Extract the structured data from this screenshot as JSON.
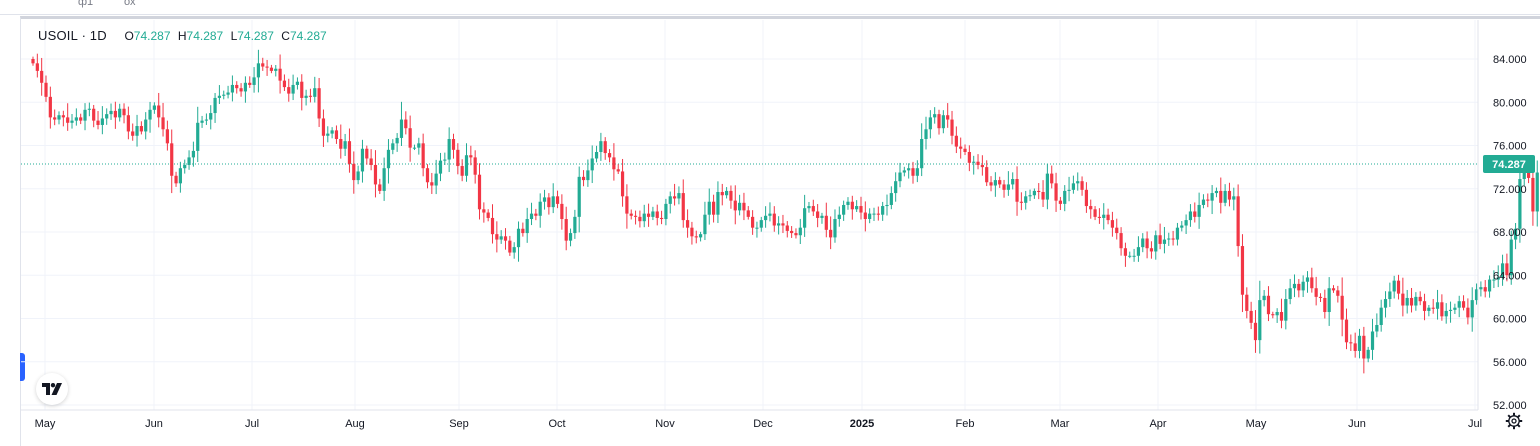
{
  "symbol": {
    "name": "USOIL",
    "sep": "·",
    "interval": "1D"
  },
  "legend": {
    "o_label": "O",
    "o": "74.287",
    "h_label": "H",
    "h": "74.287",
    "l_label": "L",
    "l": "74.287",
    "c_label": "C",
    "c": "74.287"
  },
  "topbar": {
    "left_stub1": "ф1",
    "left_stub2": "ох"
  },
  "colors": {
    "up": "#22ab94",
    "down": "#f23645",
    "grid": "#f0f3fa",
    "axis_text": "#131722",
    "price_line": "#22ab94"
  },
  "icons": {
    "logo": "tradingview-logo-icon",
    "settings": "gear-icon"
  },
  "chart_data": {
    "type": "candlestick",
    "title": "USOIL · 1D",
    "ylim": [
      51.5,
      86.0
    ],
    "y_ticks": [
      52,
      56,
      60,
      64,
      68,
      72,
      76,
      80,
      84
    ],
    "y_tick_labels": [
      "52.000",
      "56.000",
      "60.000",
      "64.000",
      "68.000",
      "72.000",
      "76.000",
      "80.000",
      "84.000"
    ],
    "x_labels": [
      "May",
      "Jun",
      "Jul",
      "Aug",
      "Sep",
      "Oct",
      "Nov",
      "Dec",
      "2025",
      "Feb",
      "Mar",
      "Apr",
      "May",
      "Jun",
      "Jul"
    ],
    "x_label_bold": "2025",
    "last_price": 74.287,
    "last_price_label": "74.287",
    "closes": [
      83.6,
      82.9,
      81.8,
      80.5,
      78.6,
      78.4,
      78.8,
      78.6,
      78.1,
      78.3,
      78.6,
      78.3,
      79.3,
      79.4,
      78.3,
      77.9,
      78.5,
      78.9,
      79.2,
      78.6,
      79.4,
      78.8,
      77.3,
      76.9,
      77.8,
      77.3,
      78.4,
      79.3,
      79.7,
      78.6,
      77.5,
      76.2,
      73.2,
      72.5,
      73.9,
      74.2,
      74.9,
      75.5,
      78.1,
      78.3,
      78.4,
      79.0,
      80.4,
      80.6,
      80.7,
      80.9,
      81.6,
      81.3,
      81.0,
      81.8,
      81.6,
      82.3,
      83.6,
      83.3,
      83.2,
      82.9,
      83.1,
      82.0,
      81.4,
      80.8,
      81.6,
      81.9,
      80.4,
      80.6,
      80.5,
      81.3,
      78.5,
      76.9,
      77.1,
      77.4,
      76.6,
      75.7,
      76.4,
      74.3,
      72.8,
      73.6,
      75.7,
      74.8,
      74.2,
      72.4,
      71.8,
      73.9,
      75.6,
      76.2,
      76.7,
      78.4,
      77.6,
      75.8,
      75.8,
      76.2,
      73.9,
      72.6,
      72.3,
      73.4,
      74.6,
      74.7,
      76.6,
      75.6,
      74.1,
      73.2,
      75.1,
      74.9,
      73.3,
      70.1,
      69.8,
      69.3,
      67.8,
      67.3,
      67.6,
      67.2,
      66.1,
      66.6,
      68.3,
      67.9,
      69.2,
      69.7,
      69.5,
      70.8,
      71.2,
      70.3,
      71.3,
      70.6,
      69.2,
      67.2,
      67.9,
      69.4,
      73.1,
      72.8,
      73.7,
      74.8,
      75.4,
      76.4,
      75.3,
      74.9,
      73.8,
      73.6,
      71.3,
      69.7,
      69.5,
      69.4,
      69.0,
      69.7,
      69.4,
      69.9,
      69.3,
      69.2,
      70.6,
      71.3,
      71.1,
      71.6,
      69.1,
      68.4,
      67.6,
      67.5,
      67.8,
      69.6,
      70.8,
      69.6,
      71.7,
      71.4,
      71.8,
      70.9,
      70.0,
      70.7,
      70.0,
      69.4,
      68.4,
      68.4,
      69.1,
      69.5,
      69.7,
      68.6,
      68.8,
      68.6,
      68.1,
      67.9,
      67.7,
      68.4,
      70.2,
      70.4,
      69.9,
      69.3,
      69.5,
      68.2,
      67.5,
      69.2,
      69.6,
      70.5,
      70.8,
      70.1,
      70.4,
      69.8,
      69.2,
      69.7,
      69.7,
      69.6,
      70.4,
      70.5,
      71.6,
      72.7,
      73.5,
      73.7,
      73.9,
      73.2,
      73.9,
      76.6,
      77.5,
      78.6,
      78.9,
      77.6,
      78.8,
      78.4,
      76.9,
      75.9,
      75.7,
      75.4,
      74.4,
      74.5,
      74.2,
      74.0,
      72.6,
      72.3,
      72.8,
      72.4,
      71.9,
      72.4,
      72.9,
      70.8,
      70.7,
      71.3,
      71.4,
      71.8,
      71.7,
      71.0,
      73.4,
      72.5,
      70.9,
      70.6,
      71.8,
      71.9,
      72.5,
      72.7,
      71.9,
      70.4,
      70.1,
      69.4,
      69.3,
      69.6,
      69.1,
      68.4,
      67.9,
      66.5,
      65.8,
      65.8,
      65.8,
      66.6,
      67.4,
      66.5,
      66.2,
      67.7,
      66.9,
      67.3,
      67.4,
      67.3,
      68.4,
      68.6,
      69.1,
      69.9,
      69.4,
      70.5,
      71.0,
      70.9,
      71.6,
      71.8,
      70.7,
      71.8,
      71.0,
      71.3,
      66.7,
      62.2,
      60.7,
      59.6,
      58.0,
      61.7,
      62.1,
      60.4,
      60.3,
      60.6,
      59.8,
      61.8,
      62.8,
      63.2,
      62.6,
      63.4,
      63.8,
      62.8,
      62.0,
      61.9,
      60.6,
      62.8,
      62.6,
      62.1,
      59.9,
      57.8,
      57.7,
      57.0,
      58.4,
      56.3,
      57.1,
      58.8,
      59.4,
      61.0,
      61.8,
      62.5,
      63.5,
      62.3,
      61.2,
      61.9,
      61.2,
      62.0,
      61.6,
      60.7,
      61.0,
      60.9,
      61.5,
      60.2,
      60.7,
      60.8,
      61.0,
      61.6,
      61.0,
      60.1,
      61.7,
      62.7,
      62.9,
      62.5,
      63.6,
      63.6,
      63.8,
      65.1,
      64.0,
      67.3,
      68.3,
      72.9,
      74.0,
      73.0,
      69.9,
      73.5,
      74.3
    ]
  }
}
